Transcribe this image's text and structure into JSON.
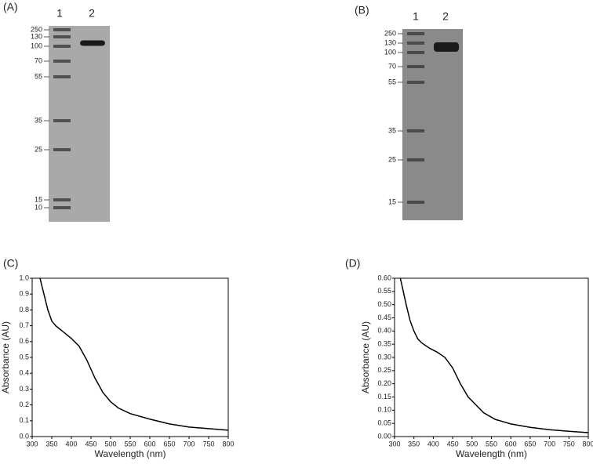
{
  "gels": [
    {
      "panel_label": "(A)",
      "lanes": [
        "1",
        "2"
      ],
      "markers": [
        "250",
        "130",
        "100",
        "70",
        "55",
        "35",
        "25",
        "15",
        "10"
      ]
    },
    {
      "panel_label": "(B)",
      "lanes": [
        "1",
        "2"
      ],
      "markers": [
        "250",
        "130",
        "100",
        "70",
        "55",
        "35",
        "25",
        "15"
      ]
    }
  ],
  "chart_data": [
    {
      "type": "line",
      "panel_label": "(C)",
      "x_label": "Wavelength (nm)",
      "y_label": "Absorbance (AU)",
      "x": [
        320,
        330,
        340,
        350,
        360,
        365,
        370,
        380,
        400,
        420,
        440,
        460,
        480,
        500,
        520,
        550,
        600,
        650,
        700,
        750,
        800
      ],
      "series": [
        {
          "color": "#000000",
          "values": [
            1.0,
            0.9,
            0.8,
            0.73,
            0.7,
            0.69,
            0.68,
            0.66,
            0.62,
            0.57,
            0.48,
            0.37,
            0.28,
            0.22,
            0.18,
            0.145,
            0.11,
            0.08,
            0.06,
            0.05,
            0.04
          ]
        }
      ],
      "xlim": [
        300,
        800
      ],
      "xticks": [
        300,
        350,
        400,
        450,
        500,
        550,
        600,
        650,
        700,
        750,
        800
      ],
      "ylim": [
        0,
        1.0
      ],
      "yticks": [
        {
          "value": 0,
          "label": "0.0"
        },
        0.1,
        0.2,
        0.3,
        0.4,
        0.5,
        0.6,
        0.7,
        0.8,
        0.9,
        {
          "value": 1.0,
          "label": "1.0"
        }
      ]
    },
    {
      "type": "line",
      "panel_label": "(D)",
      "x_label": "Wavelength (nm)",
      "y_label": "Absorbance (AU)",
      "x": [
        315,
        330,
        340,
        350,
        360,
        370,
        390,
        410,
        430,
        450,
        470,
        490,
        510,
        530,
        560,
        600,
        650,
        700,
        750,
        800
      ],
      "series": [
        {
          "color": "#000000",
          "values": [
            0.6,
            0.5,
            0.44,
            0.4,
            0.37,
            0.355,
            0.335,
            0.32,
            0.3,
            0.26,
            0.2,
            0.15,
            0.12,
            0.09,
            0.065,
            0.048,
            0.035,
            0.026,
            0.02,
            0.015
          ]
        }
      ],
      "xlim": [
        300,
        800
      ],
      "xticks": [
        300,
        350,
        400,
        450,
        500,
        550,
        600,
        650,
        700,
        750,
        800
      ],
      "ylim": [
        0,
        0.6
      ],
      "yticks": [
        {
          "value": 0,
          "label": "0.00"
        },
        0.05,
        {
          "value": 0.1,
          "label": "0.10"
        },
        0.15,
        {
          "value": 0.2,
          "label": "0.20"
        },
        0.25,
        {
          "value": 0.3,
          "label": "0.30"
        },
        0.35,
        {
          "value": 0.4,
          "label": "0.40"
        },
        0.45,
        {
          "value": 0.5,
          "label": "0.50"
        },
        0.55,
        {
          "value": 0.6,
          "label": "0.60"
        }
      ]
    }
  ]
}
